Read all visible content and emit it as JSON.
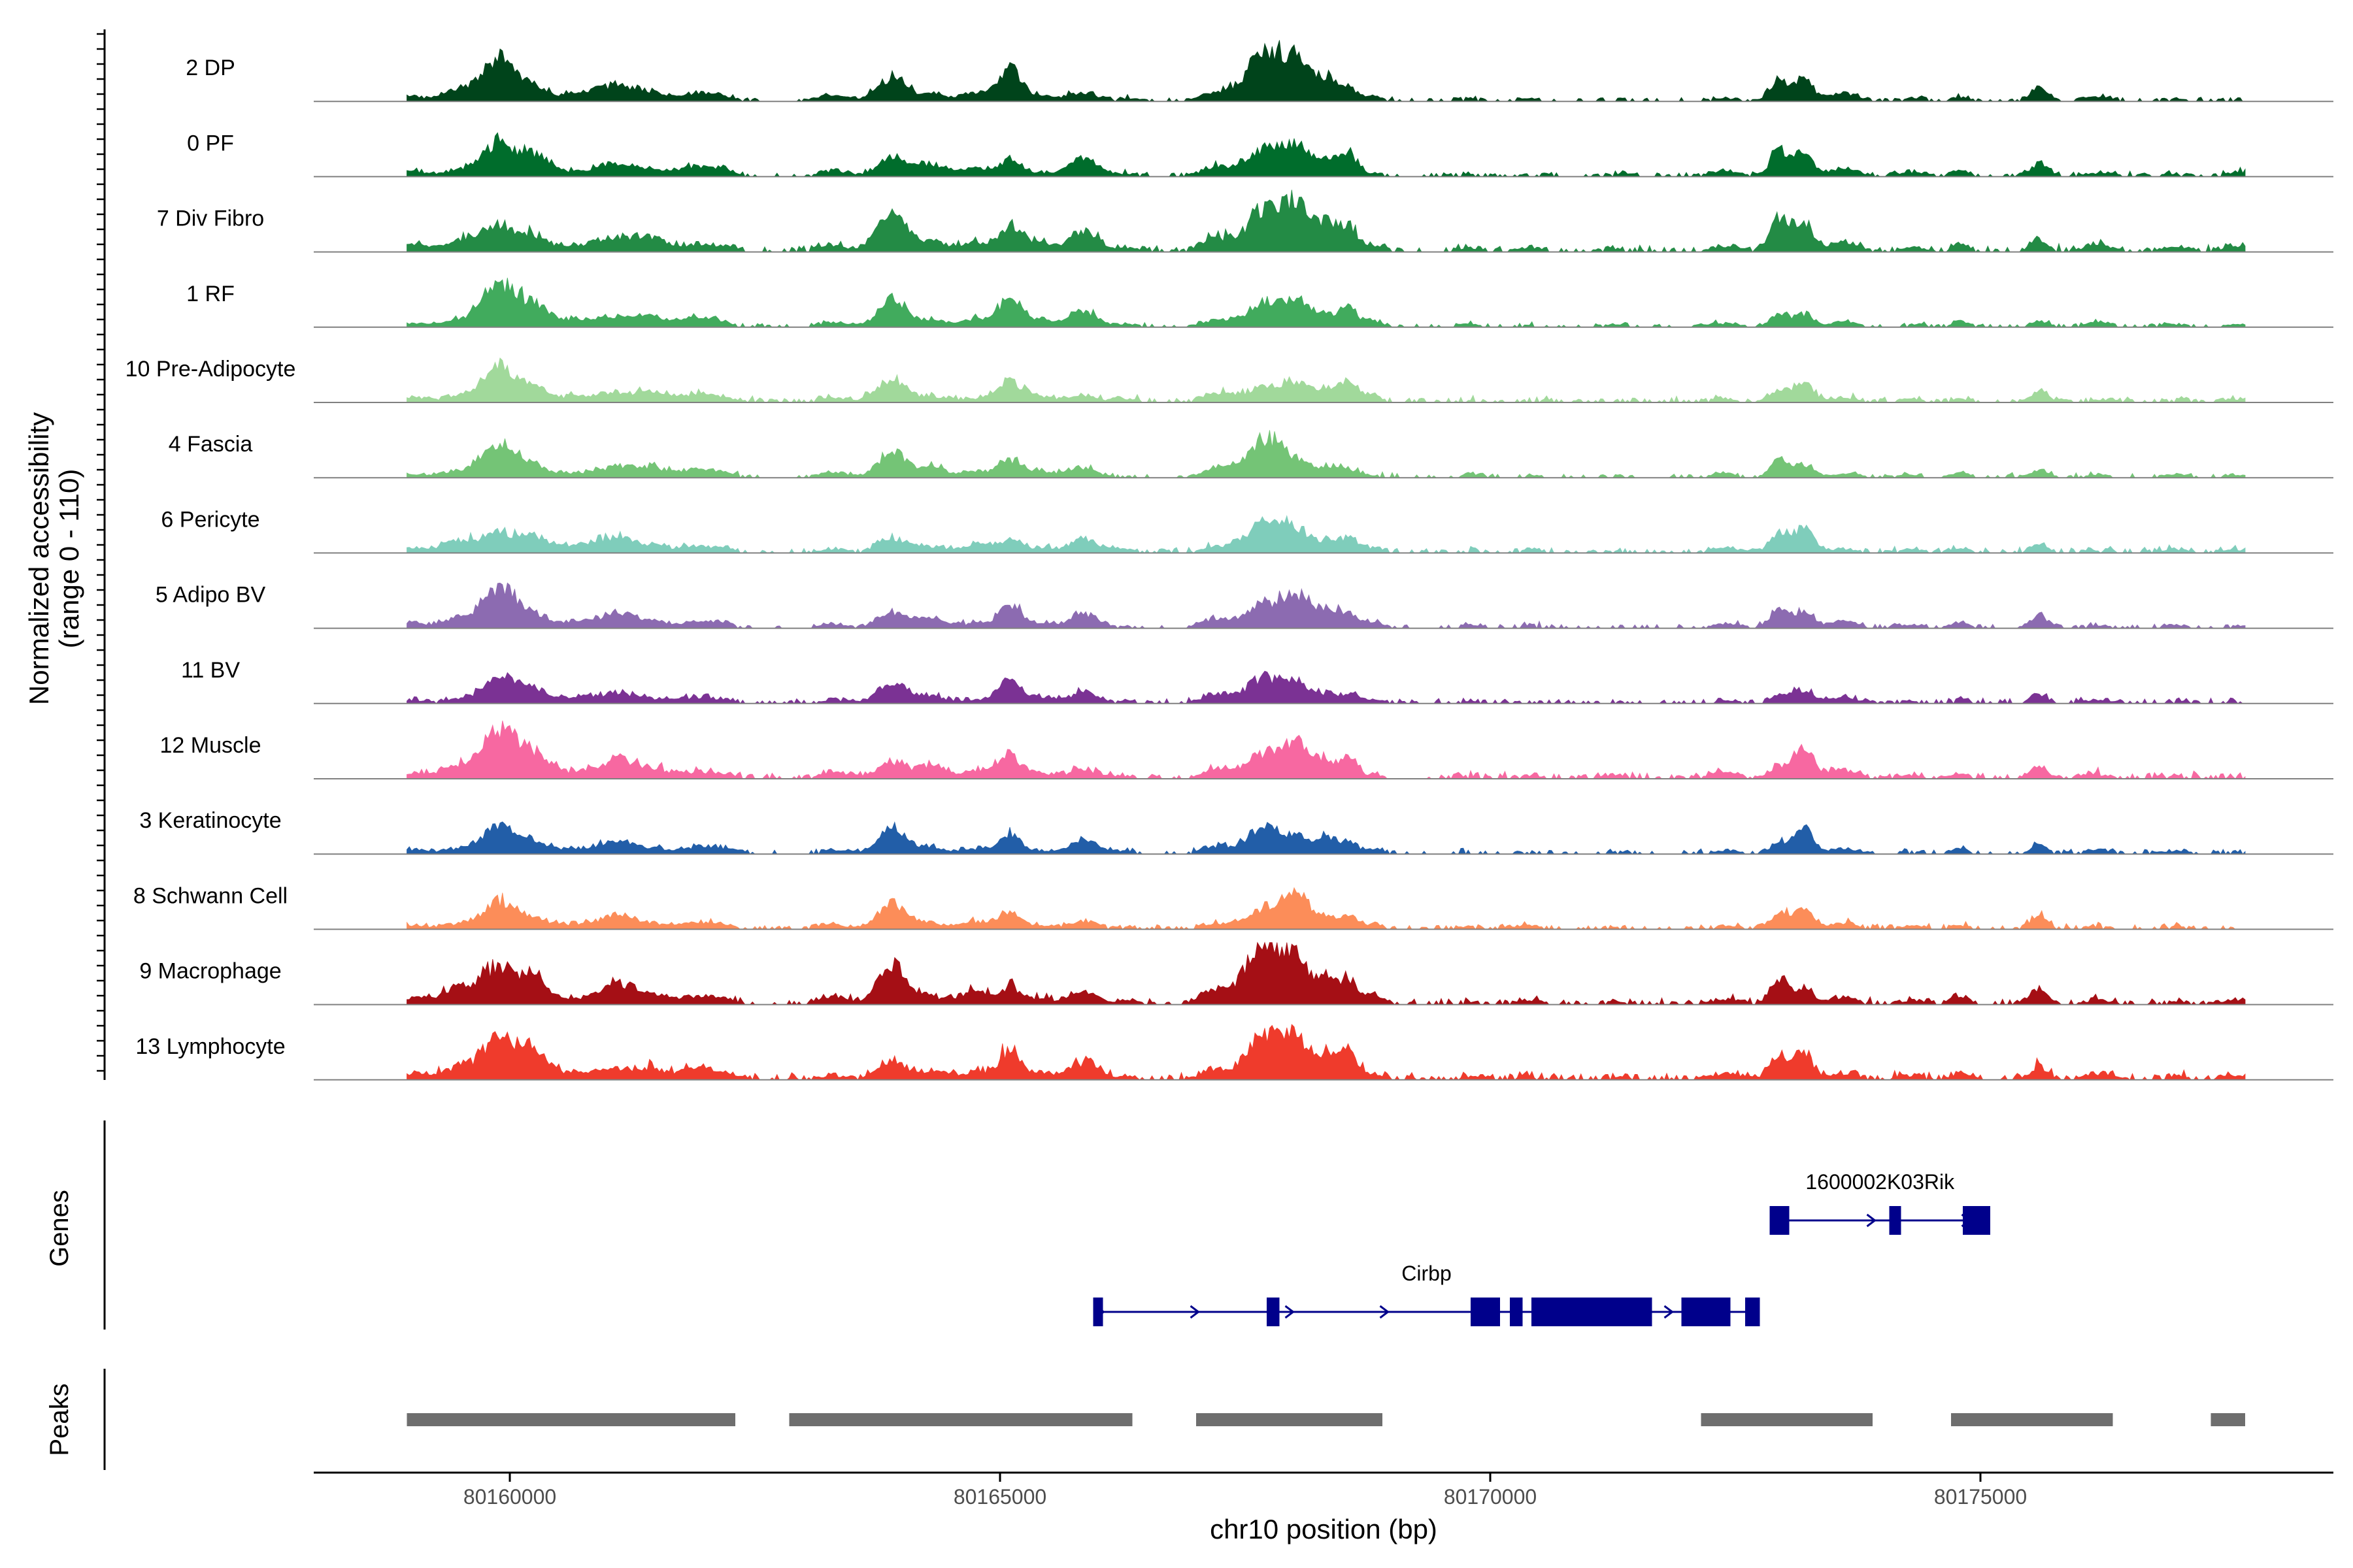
{
  "chart_data": {
    "type": "area",
    "title": "",
    "ylabel_line1": "Normalized accessibility",
    "ylabel_line2": "(range 0 - 110)",
    "xlabel": "chr10 position (bp)",
    "xlim": [
      80158000,
      80178600
    ],
    "ylim": [
      0,
      110
    ],
    "x_ticks": [
      80160000,
      80165000,
      80170000,
      80175000
    ],
    "x_tick_labels": [
      "80160000",
      "80165000",
      "80170000",
      "80175000"
    ],
    "signal_range_bp": [
      80158950,
      80177700
    ],
    "series": [
      {
        "name": "2 DP",
        "color": "#00441b",
        "seed": 3,
        "amp": 0.72,
        "bg": 0.08
      },
      {
        "name": "0 PF",
        "color": "#006d2c",
        "seed": 7,
        "amp": 0.76,
        "bg": 0.09
      },
      {
        "name": "7 Div Fibro",
        "color": "#238b45",
        "seed": 11,
        "amp": 0.95,
        "bg": 0.12
      },
      {
        "name": "1 RF",
        "color": "#41ab5d",
        "seed": 17,
        "amp": 0.66,
        "bg": 0.07
      },
      {
        "name": "10 Pre-Adipocyte",
        "color": "#a1d99b",
        "seed": 23,
        "amp": 0.55,
        "bg": 0.1
      },
      {
        "name": "4 Fascia",
        "color": "#74c476",
        "seed": 29,
        "amp": 0.6,
        "bg": 0.08
      },
      {
        "name": "6 Pericyte",
        "color": "#7fcdbb",
        "seed": 31,
        "amp": 0.64,
        "bg": 0.1
      },
      {
        "name": "5 Adipo BV",
        "color": "#8c6bb1",
        "seed": 37,
        "amp": 0.6,
        "bg": 0.08
      },
      {
        "name": "11 BV",
        "color": "#7b3294",
        "seed": 41,
        "amp": 0.5,
        "bg": 0.1
      },
      {
        "name": "12 Muscle",
        "color": "#f768a1",
        "seed": 43,
        "amp": 0.76,
        "bg": 0.12
      },
      {
        "name": "3 Keratinocyte",
        "color": "#225ea8",
        "seed": 47,
        "amp": 0.58,
        "bg": 0.08
      },
      {
        "name": "8 Schwann Cell",
        "color": "#fc8d59",
        "seed": 53,
        "amp": 0.62,
        "bg": 0.09
      },
      {
        "name": "9 Macrophage",
        "color": "#a50f15",
        "seed": 59,
        "amp": 0.9,
        "bg": 0.12
      },
      {
        "name": "13 Lymphocyte",
        "color": "#ef3b2c",
        "seed": 61,
        "amp": 0.76,
        "bg": 0.14
      }
    ],
    "genes_track_label": "Genes",
    "genes": [
      {
        "name": "1600002K03Rik",
        "strand": "+",
        "start": 80172850,
        "end": 80175100,
        "exons": [
          [
            80172850,
            80173050
          ],
          [
            80174070,
            80174190
          ],
          [
            80174820,
            80175100
          ]
        ]
      },
      {
        "name": "Cirbp",
        "strand": "+",
        "start": 80165950,
        "end": 80172750,
        "exons": [
          [
            80165950,
            80166050
          ],
          [
            80167720,
            80167850
          ],
          [
            80169800,
            80170100
          ],
          [
            80170200,
            80170330
          ],
          [
            80170420,
            80171650
          ],
          [
            80171950,
            80172450
          ],
          [
            80172600,
            80172750
          ]
        ]
      }
    ],
    "gene_color": "#00008b",
    "peaks_track_label": "Peaks",
    "peak_color": "#6e6e6e",
    "peaks": [
      [
        80158950,
        80162300
      ],
      [
        80162850,
        80166350
      ],
      [
        80167000,
        80168900
      ],
      [
        80172150,
        80173900
      ],
      [
        80174700,
        80176350
      ],
      [
        80177350,
        80177700
      ]
    ]
  }
}
